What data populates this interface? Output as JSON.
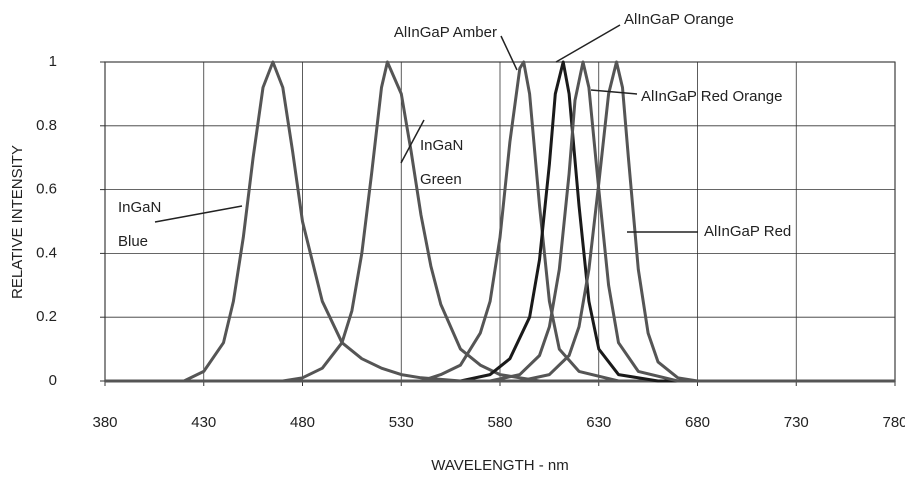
{
  "chart_data": {
    "type": "line",
    "xlabel": "WAVELENGTH - nm",
    "ylabel": "RELATIVE INTENSITY",
    "xlim": [
      380,
      780
    ],
    "xticks": [
      380,
      430,
      480,
      530,
      580,
      630,
      680,
      730,
      780
    ],
    "ylim": [
      0,
      1
    ],
    "yticks": [
      0,
      0.2,
      0.4,
      0.6,
      0.8,
      1
    ],
    "grid": true,
    "series": [
      {
        "color": "#555555",
        "x": [
          380,
          420,
          430,
          440,
          445,
          450,
          455,
          460,
          465,
          470,
          475,
          480,
          490,
          500,
          510,
          520,
          530,
          540,
          560,
          780
        ],
        "values": [
          0,
          0,
          0.03,
          0.12,
          0.25,
          0.45,
          0.7,
          0.92,
          1,
          0.92,
          0.72,
          0.5,
          0.25,
          0.12,
          0.07,
          0.04,
          0.02,
          0.01,
          0,
          0
        ]
      },
      {
        "color": "#555555",
        "x": [
          380,
          470,
          480,
          490,
          500,
          505,
          510,
          515,
          520,
          523,
          530,
          535,
          540,
          545,
          550,
          560,
          570,
          580,
          600,
          780
        ],
        "values": [
          0,
          0,
          0.01,
          0.04,
          0.12,
          0.22,
          0.4,
          0.65,
          0.92,
          1,
          0.9,
          0.72,
          0.52,
          0.36,
          0.24,
          0.1,
          0.05,
          0.02,
          0,
          0
        ]
      },
      {
        "color": "#555555",
        "x": [
          380,
          540,
          550,
          560,
          570,
          575,
          580,
          585,
          590,
          592,
          595,
          600,
          605,
          610,
          620,
          640,
          780
        ],
        "values": [
          0,
          0,
          0.02,
          0.05,
          0.15,
          0.25,
          0.45,
          0.75,
          0.98,
          1,
          0.9,
          0.55,
          0.25,
          0.1,
          0.03,
          0,
          0
        ]
      },
      {
        "color": "#1a1a1a",
        "x": [
          380,
          560,
          575,
          585,
          595,
          600,
          605,
          608,
          612,
          615,
          620,
          625,
          630,
          640,
          660,
          780
        ],
        "values": [
          0,
          0,
          0.02,
          0.07,
          0.2,
          0.38,
          0.68,
          0.9,
          1,
          0.9,
          0.55,
          0.25,
          0.1,
          0.02,
          0,
          0
        ]
      },
      {
        "color": "#555555",
        "x": [
          380,
          575,
          590,
          600,
          605,
          610,
          615,
          618,
          622,
          625,
          630,
          635,
          640,
          650,
          670,
          780
        ],
        "values": [
          0,
          0,
          0.02,
          0.08,
          0.17,
          0.35,
          0.65,
          0.88,
          1,
          0.92,
          0.6,
          0.3,
          0.12,
          0.03,
          0,
          0
        ]
      },
      {
        "color": "#555555",
        "x": [
          380,
          590,
          605,
          615,
          620,
          625,
          630,
          635,
          639,
          642,
          645,
          650,
          655,
          660,
          670,
          680,
          780
        ],
        "values": [
          0,
          0,
          0.02,
          0.08,
          0.17,
          0.35,
          0.62,
          0.9,
          1,
          0.92,
          0.7,
          0.35,
          0.15,
          0.06,
          0.01,
          0,
          0
        ]
      }
    ],
    "annotations": [
      {
        "lines": [
          "InGaN",
          "Blue"
        ]
      },
      {
        "lines": [
          "InGaN",
          "Green"
        ]
      },
      {
        "lines": [
          "AlInGaP Amber"
        ]
      },
      {
        "lines": [
          "AlInGaP Orange"
        ]
      },
      {
        "lines": [
          "AlInGaP Red Orange"
        ]
      },
      {
        "lines": [
          "AlInGaP Red"
        ]
      }
    ]
  }
}
